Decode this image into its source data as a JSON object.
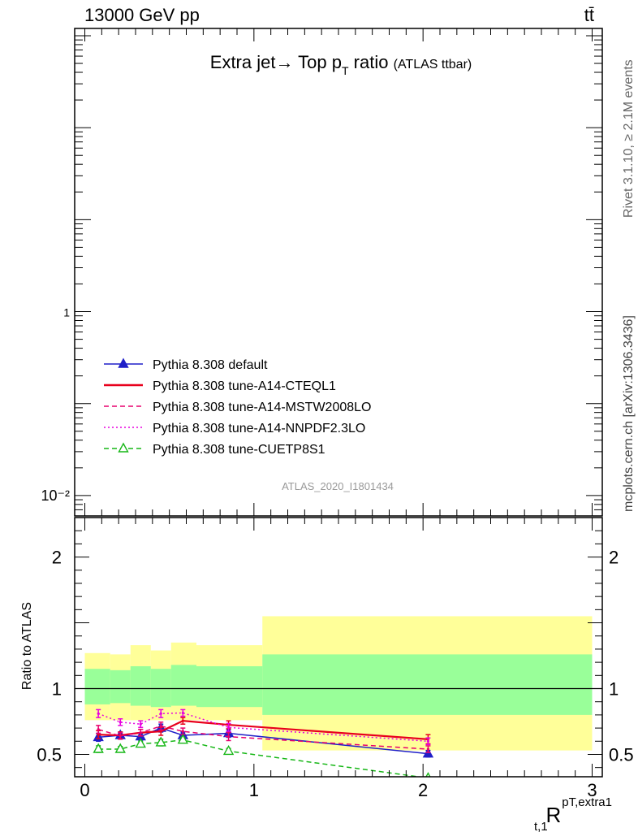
{
  "header": {
    "left": "13000 GeV pp",
    "right": "tt̄"
  },
  "side": {
    "rivet": "Rivet 3.1.10, ≥ 2.1M events",
    "mcplots": "mcplots.cern.ch [arXiv:1306.3436]"
  },
  "title": {
    "main": "Extra jet→ Top p",
    "sub": "T",
    "after": " ratio",
    "small": "(ATLAS ttbar)"
  },
  "watermark": "ATLAS_2020_I1801434",
  "colors": {
    "default": "#1f1fc8",
    "cteql1": "#e8001c",
    "mstw": "#e8006e",
    "nnpdf": "#e800e0",
    "cuetp8s1": "#17b717",
    "band_yellow": "#ffff99",
    "band_green": "#99ff99"
  },
  "chart_data": [
    {
      "type": "line",
      "panel": "main",
      "yscale": "log",
      "ylim": [
        0.006,
        1200
      ],
      "xlim": [
        -0.06,
        3.06
      ],
      "y_tick_labels": [
        "10⁻²",
        "1"
      ],
      "legend_placement": "lower-left",
      "series": [
        {
          "name": "Pythia 8.308 default",
          "style": "solid",
          "marker": "triangle-filled",
          "color_key": "default"
        },
        {
          "name": "Pythia 8.308 tune-A14-CTEQL1",
          "style": "solid",
          "marker": "none",
          "color_key": "cteql1"
        },
        {
          "name": "Pythia 8.308 tune-A14-MSTW2008LO",
          "style": "dashed",
          "marker": "none",
          "color_key": "mstw"
        },
        {
          "name": "Pythia 8.308 tune-A14-NNPDF2.3LO",
          "style": "dotted",
          "marker": "none",
          "color_key": "nnpdf"
        },
        {
          "name": "Pythia 8.308 tune-CUETP8S1",
          "style": "dashed",
          "marker": "triangle-open",
          "color_key": "cuetp8s1"
        }
      ]
    },
    {
      "type": "line",
      "panel": "ratio",
      "ylabel": "Ratio to ATLAS",
      "xlabel_main": "R",
      "xlabel_sup": "pT,extra1",
      "xlabel_sub": "t,1",
      "xlim": [
        -0.06,
        3.06
      ],
      "ylim": [
        0.33,
        2.3
      ],
      "x_ticks": [
        0,
        1,
        2,
        3
      ],
      "y_ticks": [
        0.5,
        1,
        2
      ],
      "reference_line": 1,
      "bands": [
        {
          "x0": 0.0,
          "x1": 0.15,
          "yellow": [
            0.76,
            1.27
          ],
          "green": [
            0.88,
            1.15
          ]
        },
        {
          "x0": 0.15,
          "x1": 0.27,
          "yellow": [
            0.76,
            1.26
          ],
          "green": [
            0.89,
            1.14
          ]
        },
        {
          "x0": 0.27,
          "x1": 0.39,
          "yellow": [
            0.76,
            1.33
          ],
          "green": [
            0.87,
            1.17
          ]
        },
        {
          "x0": 0.39,
          "x1": 0.51,
          "yellow": [
            0.76,
            1.29
          ],
          "green": [
            0.86,
            1.15
          ]
        },
        {
          "x0": 0.51,
          "x1": 0.66,
          "yellow": [
            0.76,
            1.35
          ],
          "green": [
            0.87,
            1.18
          ]
        },
        {
          "x0": 0.66,
          "x1": 1.05,
          "yellow": [
            0.76,
            1.33
          ],
          "green": [
            0.86,
            1.17
          ]
        },
        {
          "x0": 1.05,
          "x1": 3.0,
          "yellow": [
            0.53,
            1.55
          ],
          "green": [
            0.8,
            1.26
          ]
        }
      ],
      "series": [
        {
          "name": "Pythia 8.308 default",
          "color_key": "default",
          "style": "solid",
          "marker": "triangle-filled",
          "x": [
            0.08,
            0.21,
            0.33,
            0.45,
            0.58,
            0.85,
            2.03
          ],
          "y": [
            0.63,
            0.645,
            0.635,
            0.7,
            0.645,
            0.66,
            0.505
          ],
          "err": [
            0.03,
            0.025,
            0.025,
            0.03,
            0.025,
            0.03,
            0.025
          ]
        },
        {
          "name": "Pythia 8.308 tune-A14-CTEQL1",
          "color_key": "cteql1",
          "style": "solid",
          "marker": "none",
          "x": [
            0.08,
            0.21,
            0.33,
            0.45,
            0.58,
            0.85,
            2.03
          ],
          "y": [
            0.65,
            0.645,
            0.665,
            0.675,
            0.755,
            0.725,
            0.615
          ],
          "err": [
            0.03,
            0.025,
            0.025,
            0.03,
            0.025,
            0.03,
            0.035
          ]
        },
        {
          "name": "Pythia 8.308 tune-A14-MSTW2008LO",
          "color_key": "mstw",
          "style": "dashed",
          "marker": "none",
          "x": [
            0.08,
            0.21,
            0.33,
            0.45,
            0.58,
            0.85,
            2.03
          ],
          "y": [
            0.69,
            0.64,
            0.665,
            0.715,
            0.675,
            0.635,
            0.54
          ],
          "err": [
            0.03,
            0.025,
            0.025,
            0.03,
            0.025,
            0.03,
            0.025
          ]
        },
        {
          "name": "Pythia 8.308 tune-A14-NNPDF2.3LO",
          "color_key": "nnpdf",
          "style": "dotted",
          "marker": "none",
          "x": [
            0.08,
            0.21,
            0.33,
            0.45,
            0.58,
            0.85,
            2.03
          ],
          "y": [
            0.81,
            0.745,
            0.73,
            0.81,
            0.815,
            0.705,
            0.6
          ],
          "err": [
            0.03,
            0.025,
            0.025,
            0.03,
            0.025,
            0.03,
            0.025
          ]
        },
        {
          "name": "Pythia 8.308 tune-CUETP8S1",
          "color_key": "cuetp8s1",
          "style": "dashed",
          "marker": "triangle-open",
          "x": [
            0.08,
            0.21,
            0.33,
            0.45,
            0.58,
            0.85,
            2.03
          ],
          "y": [
            0.54,
            0.54,
            0.58,
            0.59,
            0.61,
            0.525,
            0.32
          ],
          "err": [
            0.025,
            0.02,
            0.02,
            0.025,
            0.02,
            0.02,
            0.0
          ]
        }
      ]
    }
  ]
}
